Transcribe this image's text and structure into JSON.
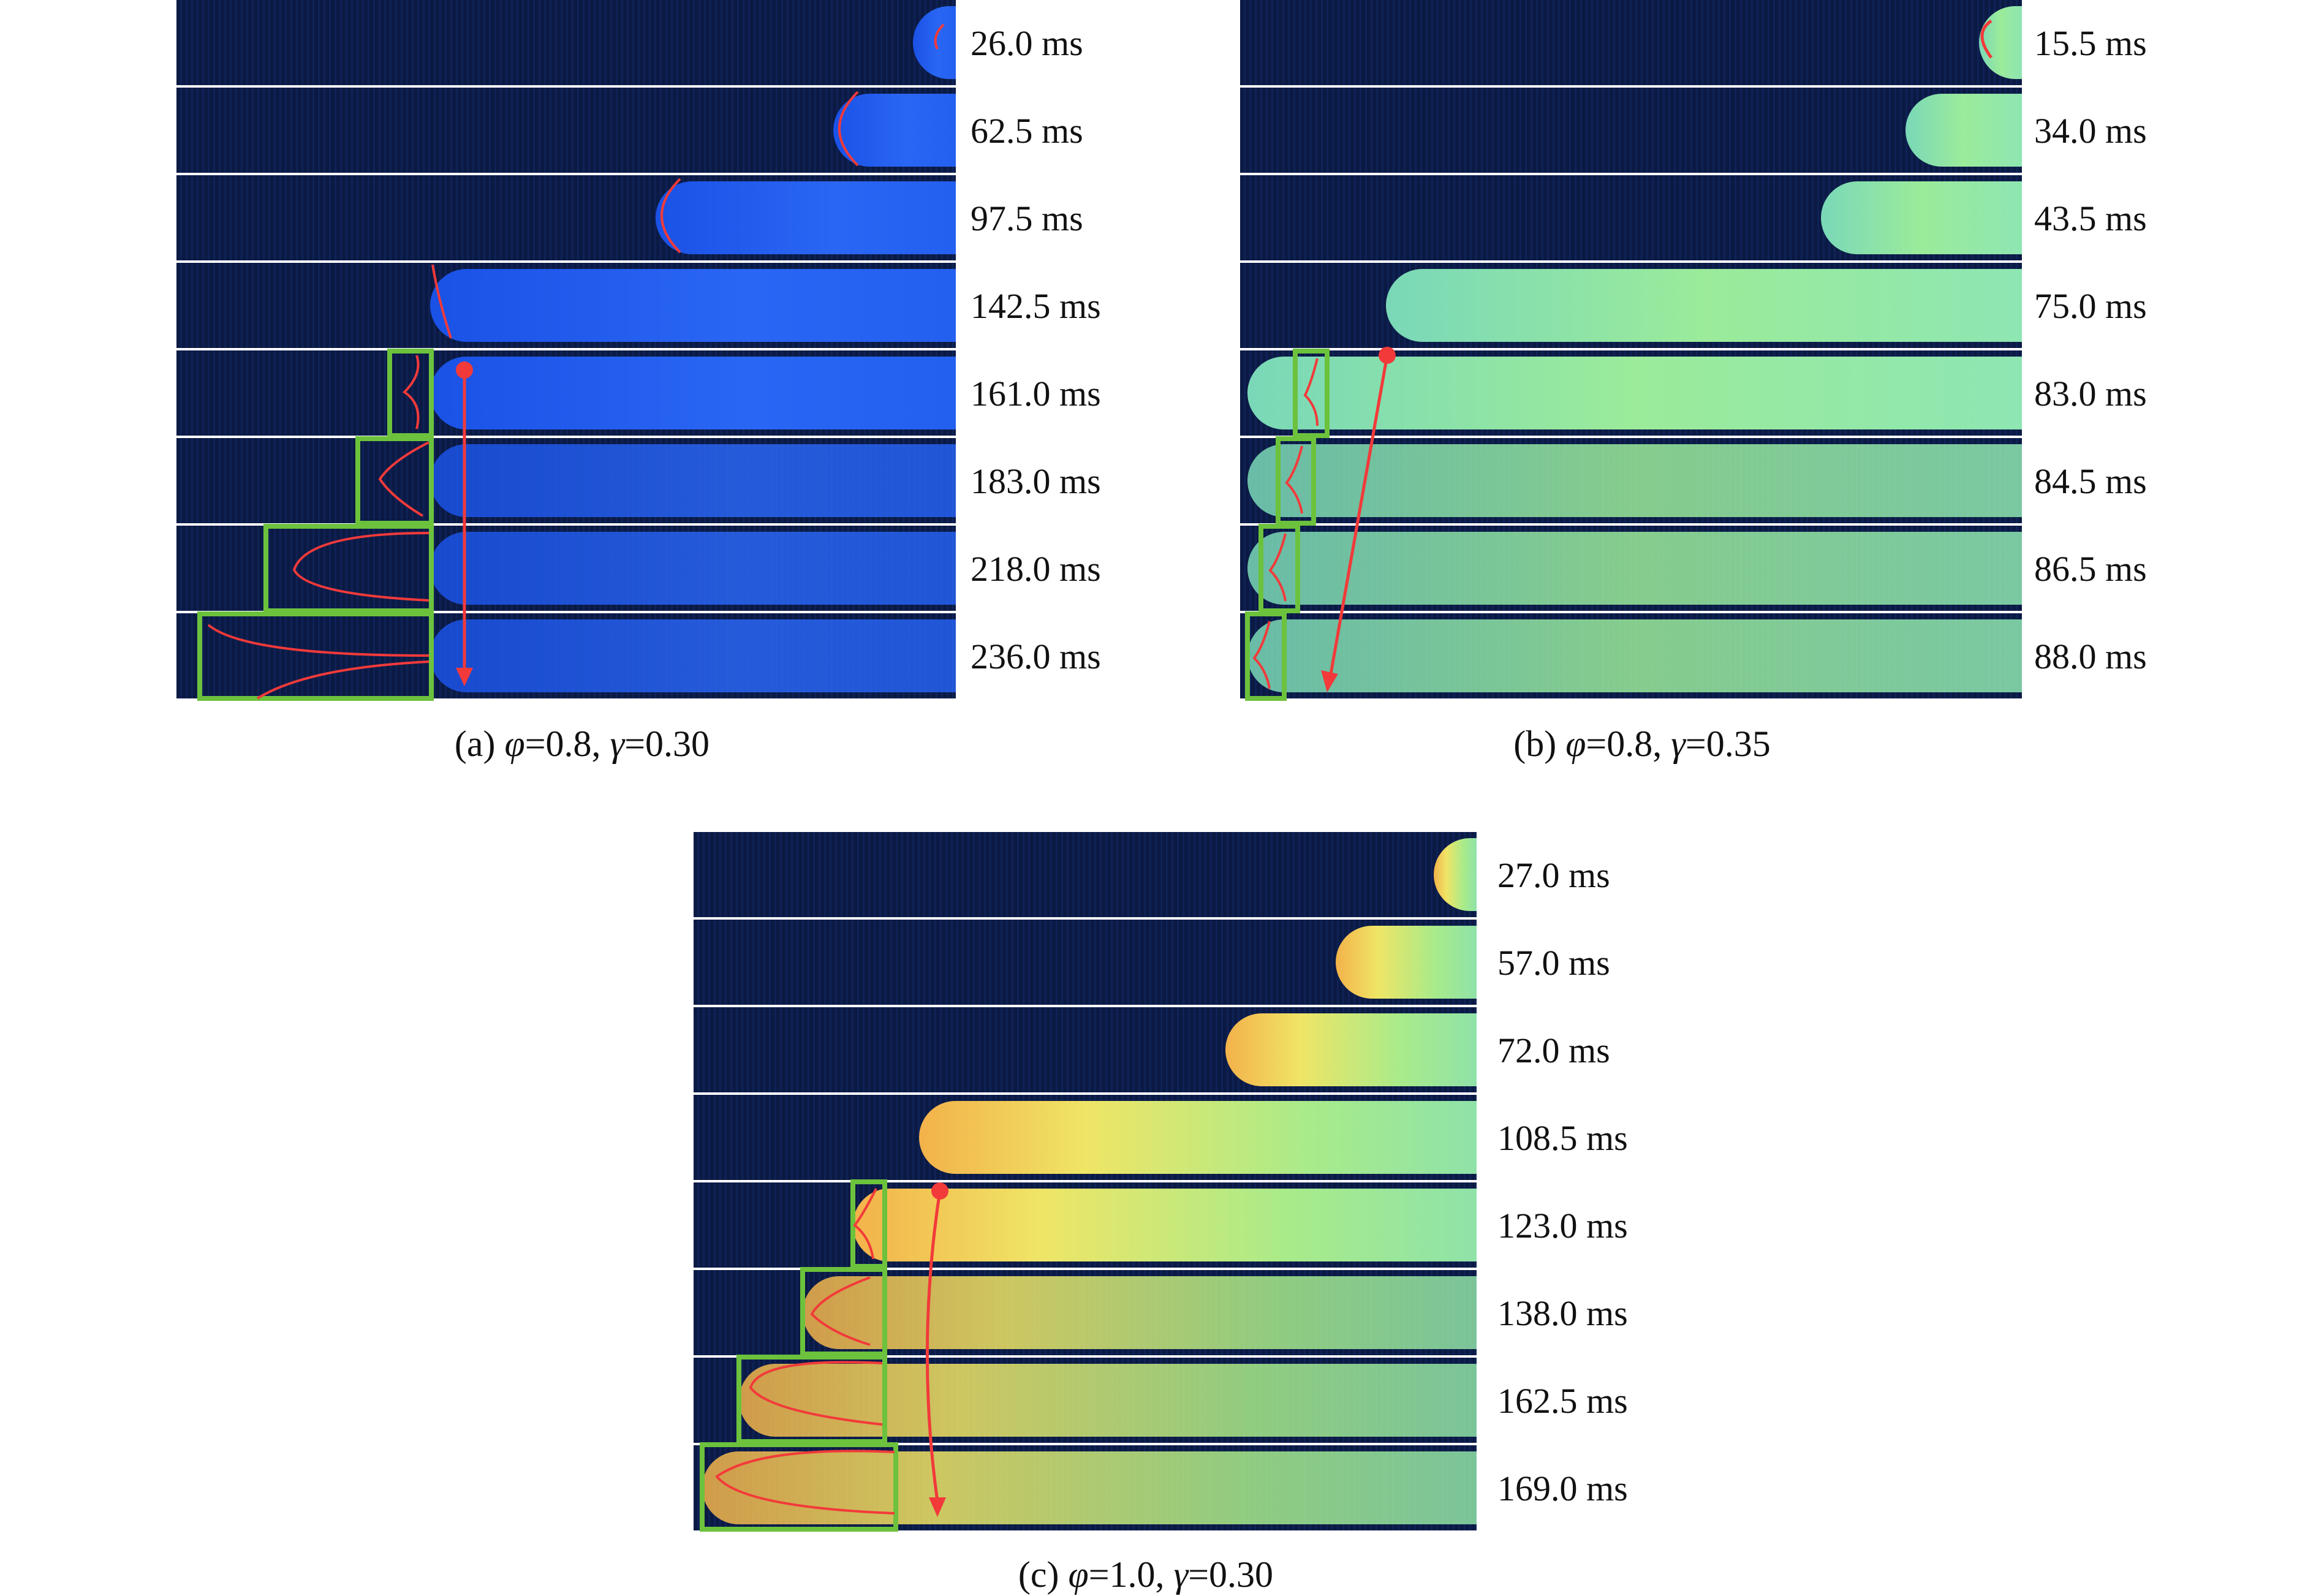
{
  "colors": {
    "background_dark": "#0b1a44",
    "flame_a": "#1e5bf0",
    "flame_b": "#8fe6a0",
    "flame_c_core": "#f0e060",
    "flame_c_hot": "#f08030",
    "annotation_red": "#f23a3a",
    "box_green": "#6cc23c",
    "separator": "#ffffff"
  },
  "panels": [
    {
      "id": "a",
      "caption_prefix": "(a) ",
      "phi_symbol": "φ",
      "phi_value": "=0.8, ",
      "gamma_symbol": "γ",
      "gamma_value": "=0.30",
      "frames": [
        "26.0 ms",
        "62.5 ms",
        "97.5 ms",
        "142.5 ms",
        "161.0 ms",
        "183.0 ms",
        "218.0 ms",
        "236.0 ms"
      ]
    },
    {
      "id": "b",
      "caption_prefix": "(b) ",
      "phi_symbol": "φ",
      "phi_value": "=0.8, ",
      "gamma_symbol": "γ",
      "gamma_value": "=0.35",
      "frames": [
        "15.5 ms",
        "34.0 ms",
        "43.5 ms",
        "75.0 ms",
        "83.0 ms",
        "84.5 ms",
        "86.5 ms",
        "88.0 ms"
      ]
    },
    {
      "id": "c",
      "caption_prefix": "(c) ",
      "phi_symbol": "φ",
      "phi_value": "=1.0, ",
      "gamma_symbol": "γ",
      "gamma_value": "=0.30",
      "frames": [
        "27.0 ms",
        "57.0 ms",
        "72.0 ms",
        "108.5 ms",
        "123.0 ms",
        "138.0 ms",
        "162.5 ms",
        "169.0 ms"
      ]
    }
  ]
}
